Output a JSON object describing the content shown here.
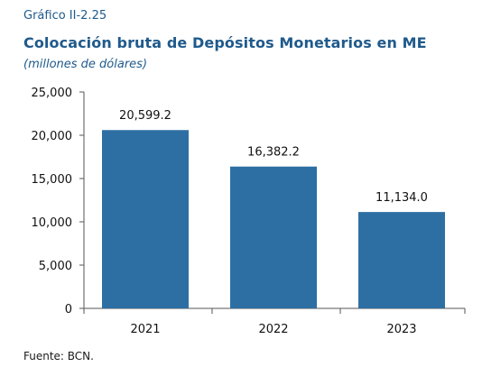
{
  "header": {
    "figure_label": "Gráfico II-2.25",
    "title": "Colocación bruta de Depósitos Monetarios en ME",
    "subtitle": "(millones de dólares)"
  },
  "footer": {
    "source": "Fuente: BCN."
  },
  "colors": {
    "bar": "#2e6fa3",
    "axis": "#555555",
    "heading": "#1f5a8c"
  },
  "chart_data": {
    "type": "bar",
    "title": "Colocación bruta de Depósitos Monetarios en ME",
    "subtitle": "(millones de dólares)",
    "categories": [
      "2021",
      "2022",
      "2023"
    ],
    "values": [
      20599.2,
      16382.2,
      11134.0
    ],
    "data_labels": [
      "20,599.2",
      "16,382.2",
      "11,134.0"
    ],
    "ylim": [
      0,
      25000
    ],
    "yticks": [
      0,
      5000,
      10000,
      15000,
      20000,
      25000
    ],
    "ytick_labels": [
      "0",
      "5,000",
      "10,000",
      "15,000",
      "20,000",
      "25,000"
    ],
    "grid": false,
    "legend": "none"
  }
}
